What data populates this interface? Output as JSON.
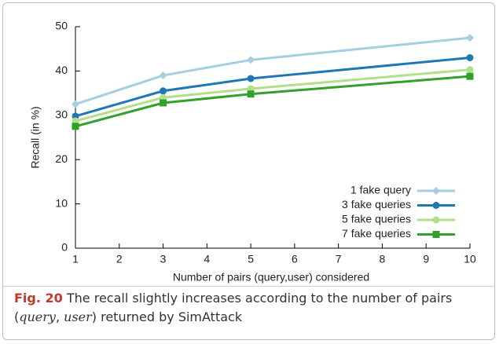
{
  "chart_data": {
    "type": "line",
    "xlabel": "Number of pairs (query,user) considered",
    "ylabel": "Recall (in %)",
    "x": [
      1,
      3,
      5,
      10
    ],
    "series": [
      {
        "name": "1 fake query",
        "color": "#a6cee3",
        "marker": "diamond",
        "values": [
          32.5,
          39,
          42.5,
          47.5
        ]
      },
      {
        "name": "3 fake queries",
        "color": "#1f78b4",
        "marker": "circle",
        "values": [
          29.8,
          35.5,
          38.3,
          43
        ]
      },
      {
        "name": "5 fake queries",
        "color": "#b2df8a",
        "marker": "circle",
        "values": [
          28.7,
          34,
          36,
          40.3
        ]
      },
      {
        "name": "7 fake queries",
        "color": "#33a02c",
        "marker": "square",
        "values": [
          27.5,
          32.8,
          34.8,
          38.8
        ]
      }
    ],
    "xlim": [
      1,
      10
    ],
    "xticks": [
      1,
      2,
      3,
      4,
      5,
      6,
      7,
      8,
      9,
      10
    ],
    "ylim": [
      0,
      50
    ],
    "yticks": [
      0,
      10,
      20,
      30,
      40,
      50
    ],
    "legend": "lower right"
  },
  "caption": {
    "label": "Fig. 20",
    "parts": [
      "The recall slightly increases according to the number of pairs (",
      "query",
      ", ",
      "user",
      ") returned by SimAttack"
    ]
  }
}
